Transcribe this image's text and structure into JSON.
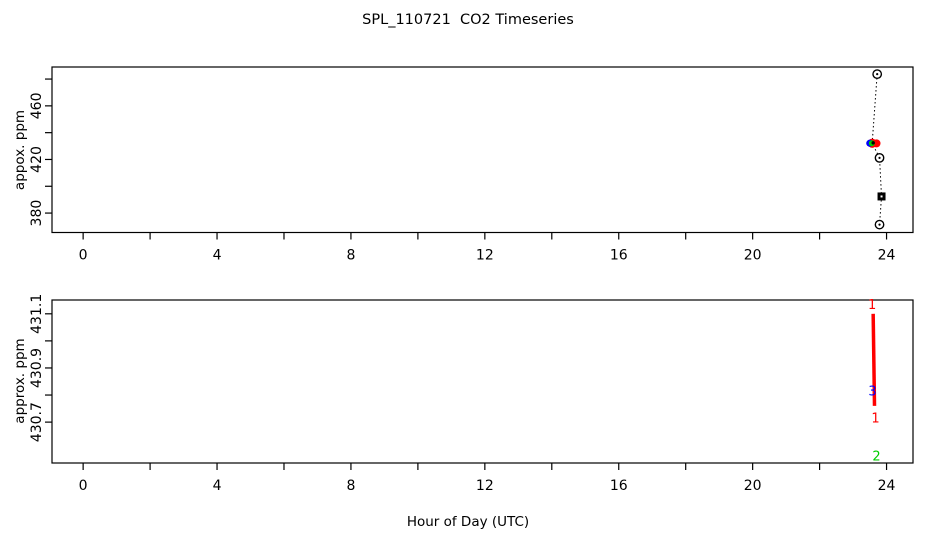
{
  "title": "SPL_110721  CO2 Timeseries",
  "xlabel": "Hour of Day (UTC)",
  "colors": {
    "black": "#000000",
    "red": "#FF0000",
    "green": "#00CD00",
    "blue": "#0000FF"
  },
  "chart_data": [
    {
      "type": "line",
      "panel": "top",
      "title": "",
      "ylabel": "appox. ppm",
      "xlabel": "",
      "xlim": [
        -0.93,
        24.79
      ],
      "ylim": [
        365.5,
        489.0
      ],
      "grid": false,
      "xticks": [
        0,
        2,
        4,
        6,
        8,
        10,
        12,
        14,
        16,
        18,
        20,
        22,
        24
      ],
      "xtick_labeled_values": [
        0,
        4,
        8,
        12,
        16,
        20,
        24
      ],
      "xtick_labels": [
        "0",
        "4",
        "8",
        "12",
        "16",
        "20",
        "24"
      ],
      "yticks": [
        380,
        400,
        420,
        440,
        460,
        480
      ],
      "ytick_labeled_values": [
        380,
        420,
        460
      ],
      "ytick_labels": [
        "380",
        "420",
        "460"
      ],
      "series": [
        {
          "name": "co2-dotted-black",
          "color": "#000000",
          "linestyle": "dotted",
          "points": [
            {
              "x": 23.72,
              "y": 483.7,
              "marker": "circle-open"
            },
            {
              "x": 23.57,
              "y": 432.1,
              "marker": "none"
            },
            {
              "x": 23.79,
              "y": 421.2,
              "marker": "circle-open"
            },
            {
              "x": 23.85,
              "y": 392.4,
              "marker": "square-filled"
            },
            {
              "x": 23.79,
              "y": 371.4,
              "marker": "circle-open"
            }
          ]
        }
      ],
      "overlay_points": [
        {
          "color": "#FF0000",
          "x": 23.7,
          "y": 432.0,
          "r": 4.0
        },
        {
          "color": "#FF0000",
          "x": 23.57,
          "y": 432.1,
          "r": 4.6
        },
        {
          "color": "#0000FF",
          "x": 23.5,
          "y": 432.1,
          "r": 3.6
        },
        {
          "color": "#00CD00",
          "x": 23.56,
          "y": 432.1,
          "r": 3.0
        },
        {
          "color": "#000000",
          "x": 23.6,
          "y": 432.4,
          "r": 1.7
        }
      ]
    },
    {
      "type": "line",
      "panel": "bottom",
      "title": "",
      "ylabel": "approx. ppm",
      "xlabel": "Hour of Day (UTC)",
      "xlim": [
        -0.93,
        24.79
      ],
      "ylim": [
        430.549,
        431.151
      ],
      "grid": false,
      "xticks": [
        0,
        2,
        4,
        6,
        8,
        10,
        12,
        14,
        16,
        18,
        20,
        22,
        24
      ],
      "xtick_labeled_values": [
        0,
        4,
        8,
        12,
        16,
        20,
        24
      ],
      "xtick_labels": [
        "0",
        "4",
        "8",
        "12",
        "16",
        "20",
        "24"
      ],
      "yticks": [
        430.7,
        430.8,
        430.9,
        431.0,
        431.1
      ],
      "ytick_labeled_values": [
        430.7,
        430.9,
        431.1
      ],
      "ytick_labels": [
        "430.7",
        "430.9",
        "431.1"
      ],
      "segments": [
        {
          "color": "#FF0000",
          "x1": 23.6,
          "y1": 431.1,
          "x2": 23.64,
          "y2": 430.76,
          "width": 3.5
        }
      ],
      "point_labels": [
        {
          "text": "1",
          "color": "#FF0000",
          "x": 23.57,
          "y": 431.135
        },
        {
          "text": "3",
          "color": "#0000FF",
          "x": 23.58,
          "y": 430.815
        },
        {
          "text": "1",
          "color": "#FF0000",
          "x": 23.67,
          "y": 430.715
        },
        {
          "text": "2",
          "color": "#00CD00",
          "x": 23.7,
          "y": 430.575
        }
      ]
    }
  ]
}
